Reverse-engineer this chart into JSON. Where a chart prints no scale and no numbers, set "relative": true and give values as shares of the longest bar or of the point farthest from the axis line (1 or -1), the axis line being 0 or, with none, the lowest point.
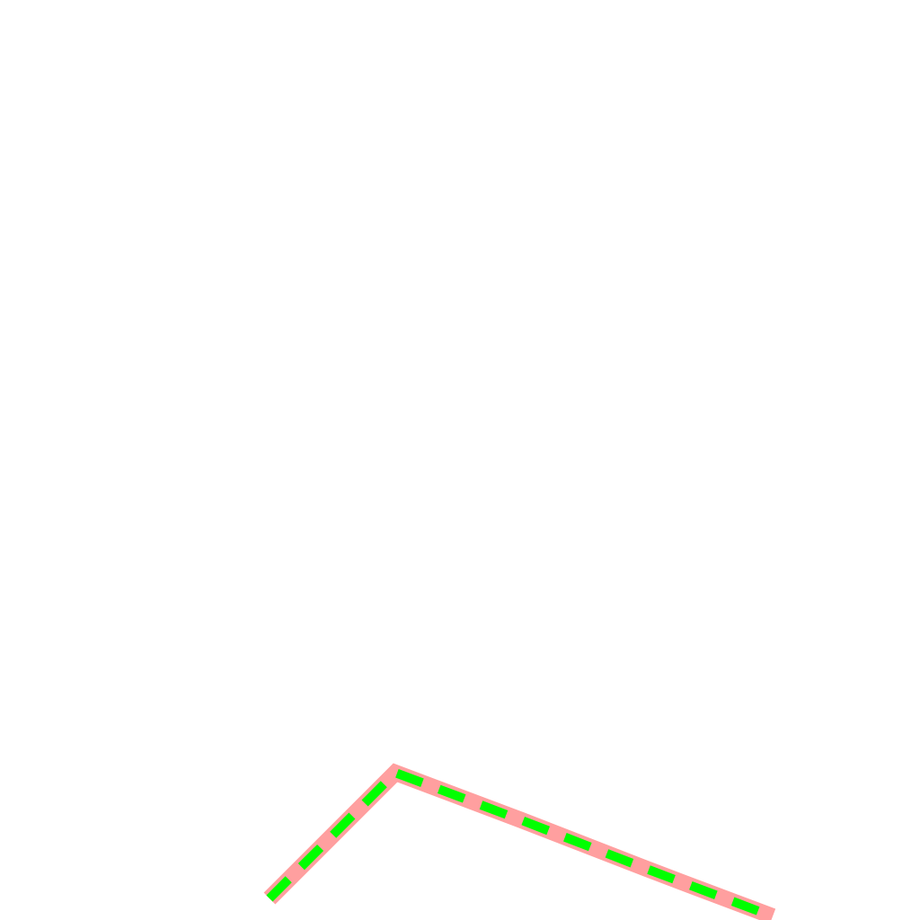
{
  "chart_data": {
    "type": "line",
    "relative": true,
    "categories": [
      null,
      null,
      null,
      null,
      null
    ],
    "series": [
      {
        "color": "#ff9f9f",
        "line_style": "solid",
        "values": [
          0.125,
          1,
          0.67,
          0.33,
          0
        ]
      },
      {
        "color": "#00ff00",
        "line_style": "dashed",
        "values": [
          0.125,
          1,
          0.67,
          0.33,
          0
        ]
      }
    ],
    "legend": false,
    "marker": "none"
  }
}
